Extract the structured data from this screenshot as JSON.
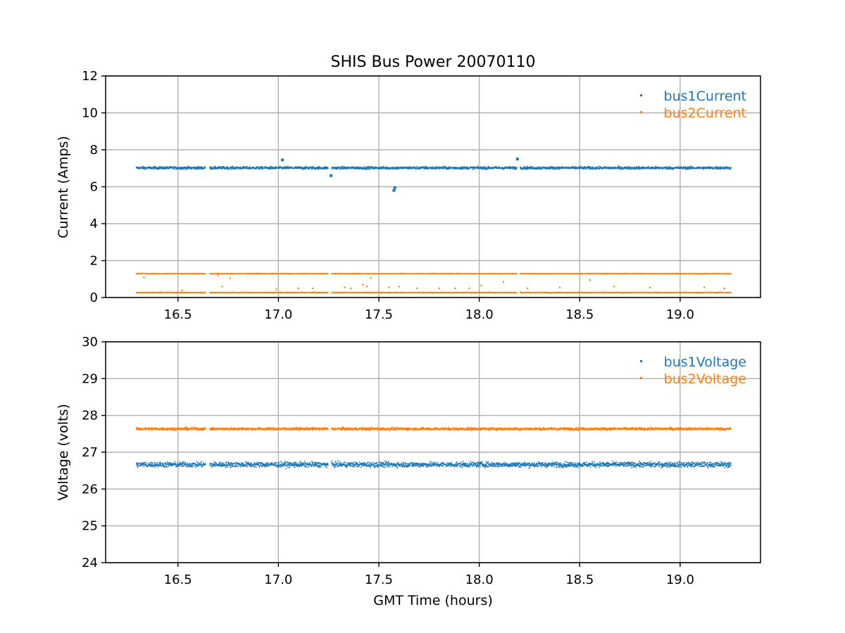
{
  "chart_data": [
    {
      "type": "scatter",
      "title": "SHIS Bus Power 20070110",
      "xlabel": "",
      "ylabel": "Current (Amps)",
      "xlim": [
        16.14,
        19.4
      ],
      "ylim": [
        0,
        12
      ],
      "xticks": [
        "16.5",
        "17.0",
        "17.5",
        "18.0",
        "18.5",
        "19.0"
      ],
      "yticks": [
        "0",
        "2",
        "4",
        "6",
        "8",
        "10",
        "12"
      ],
      "grid": true,
      "legend_position": "top-right",
      "x_range": [
        16.29,
        19.25
      ],
      "gaps": [
        [
          16.635,
          16.655
        ],
        [
          17.245,
          17.262
        ],
        [
          18.185,
          18.2
        ]
      ],
      "series": [
        {
          "name": "bus1Current",
          "color": "#1f77b4",
          "baseline": 7.05,
          "spread": 0.12,
          "features": [
            {
              "x": 17.02,
              "y": 7.45
            },
            {
              "x": 17.262,
              "y": 6.6
            },
            {
              "x": 17.575,
              "y": 5.8
            },
            {
              "x": 17.58,
              "y": 5.95
            },
            {
              "x": 18.19,
              "y": 7.5
            }
          ]
        },
        {
          "name": "bus2Current",
          "color": "#ff7f0e",
          "bands": [
            1.32,
            0.3
          ],
          "spread": 0.03,
          "outliers": [
            {
              "x": 16.33,
              "y": 1.1
            },
            {
              "x": 16.52,
              "y": 0.4
            },
            {
              "x": 16.7,
              "y": 1.2
            },
            {
              "x": 16.72,
              "y": 0.6
            },
            {
              "x": 16.76,
              "y": 1.05
            },
            {
              "x": 16.99,
              "y": 0.45
            },
            {
              "x": 17.1,
              "y": 0.5
            },
            {
              "x": 17.17,
              "y": 0.5
            },
            {
              "x": 17.33,
              "y": 0.55
            },
            {
              "x": 17.36,
              "y": 0.5
            },
            {
              "x": 17.42,
              "y": 0.7
            },
            {
              "x": 17.44,
              "y": 0.6
            },
            {
              "x": 17.46,
              "y": 1.05
            },
            {
              "x": 17.55,
              "y": 0.55
            },
            {
              "x": 17.6,
              "y": 0.6
            },
            {
              "x": 17.69,
              "y": 0.5
            },
            {
              "x": 17.8,
              "y": 0.5
            },
            {
              "x": 17.88,
              "y": 0.5
            },
            {
              "x": 17.95,
              "y": 0.5
            },
            {
              "x": 18.01,
              "y": 0.65
            },
            {
              "x": 18.12,
              "y": 0.85
            },
            {
              "x": 18.24,
              "y": 0.5
            },
            {
              "x": 18.4,
              "y": 0.55
            },
            {
              "x": 18.55,
              "y": 0.95
            },
            {
              "x": 18.67,
              "y": 0.6
            },
            {
              "x": 18.85,
              "y": 0.55
            },
            {
              "x": 19.12,
              "y": 0.55
            },
            {
              "x": 19.22,
              "y": 0.5
            }
          ]
        }
      ]
    },
    {
      "type": "scatter",
      "title": "",
      "xlabel": "GMT Time (hours)",
      "ylabel": "Voltage (volts)",
      "xlim": [
        16.14,
        19.4
      ],
      "ylim": [
        24,
        30
      ],
      "xticks": [
        "16.5",
        "17.0",
        "17.5",
        "18.0",
        "18.5",
        "19.0"
      ],
      "yticks": [
        "24",
        "25",
        "26",
        "27",
        "28",
        "29",
        "30"
      ],
      "grid": true,
      "legend_position": "top-right",
      "x_range": [
        16.29,
        19.25
      ],
      "gaps": [
        [
          16.635,
          16.655
        ],
        [
          17.245,
          17.262
        ]
      ],
      "series": [
        {
          "name": "bus1Voltage",
          "color": "#1f77b4",
          "baseline": 26.68,
          "spread": 0.12
        },
        {
          "name": "bus2Voltage",
          "color": "#ff7f0e",
          "baseline": 27.65,
          "spread": 0.06
        }
      ]
    }
  ]
}
